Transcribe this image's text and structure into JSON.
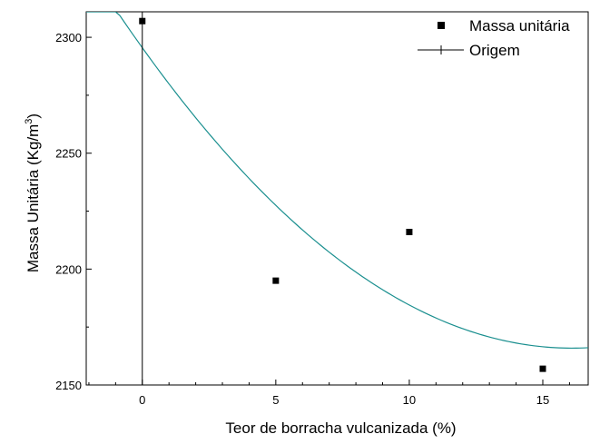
{
  "chart_data": {
    "type": "scatter",
    "xlabel": "Teor de borracha vulcanizada (%)",
    "ylabel": "Massa Unitária (Kg/m",
    "ylabel_sup": "3",
    "ylabel_end": ")",
    "xlim": [
      -2.1,
      16.7
    ],
    "ylim": [
      2150,
      2311
    ],
    "xticks": [
      0,
      5,
      10,
      15
    ],
    "yticks": [
      2150,
      2200,
      2250,
      2300
    ],
    "legend_position": "top-right",
    "grid": false,
    "series": [
      {
        "name": "Massa unitária",
        "kind": "scatter",
        "marker": "square",
        "color": "#000000",
        "points": [
          {
            "x": 0,
            "y": 2307
          },
          {
            "x": 5,
            "y": 2195
          },
          {
            "x": 10,
            "y": 2216
          },
          {
            "x": 15,
            "y": 2157
          }
        ]
      },
      {
        "name": "Origem",
        "kind": "vertical-line",
        "color": "#000000",
        "x": 0
      },
      {
        "kind": "fit-curve",
        "color": "#1a8f8f",
        "polynomial": [
          2295.5,
          -16.1,
          0.5
        ],
        "domain": [
          -2.1,
          16.7
        ]
      }
    ]
  }
}
